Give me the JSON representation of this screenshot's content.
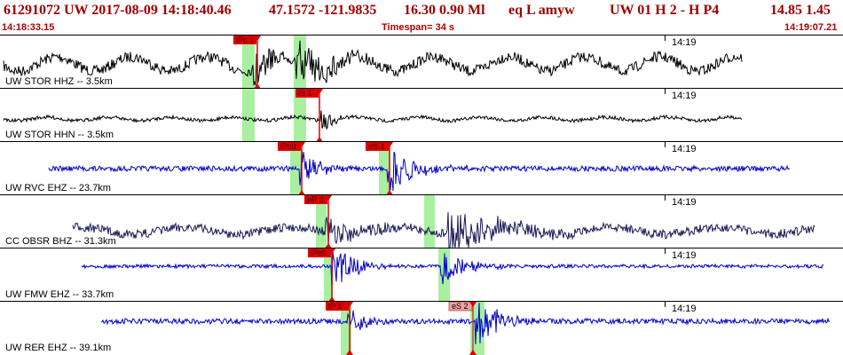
{
  "header": {
    "event_info": "61291072 UW 2017-08-09 14:18:40.46",
    "coords": "47.1572 -121.9835",
    "mag": "16.30  0.90 Ml",
    "etype": "eq  L amyw",
    "solution": "UW 01  H  2  -  H P4",
    "extra": "14.85  1.45"
  },
  "subheader": {
    "start_time": "14:18:33.15",
    "timespan": "Timespan=  34 s",
    "end_time": "14:19:07.21"
  },
  "panels": [
    {
      "label": "UW STOR HHZ -- 3.5km",
      "time_mark": "14:19",
      "color": "#000000",
      "picks": [
        {
          "label": "iPc 1",
          "x": 263,
          "style": "red"
        }
      ]
    },
    {
      "label": "UW STOR HHN -- 3.5km",
      "time_mark": "14:19",
      "color": "#000000",
      "picks": [
        {
          "label": "iS 1",
          "x": 333,
          "style": "red"
        }
      ]
    },
    {
      "label": "UW RVC EHZ -- 23.7km",
      "time_mark": "14:19",
      "color": "#0000cc",
      "picks": [
        {
          "label": "iPc0",
          "x": 313,
          "style": "red"
        },
        {
          "label": "eS 1",
          "x": 412,
          "style": "red"
        }
      ]
    },
    {
      "label": "CC OBSR BHZ -- 31.3km",
      "time_mark": "14:19",
      "color": "#1a1a55",
      "picks": [
        {
          "label": "eP 2",
          "x": 343,
          "style": "red"
        }
      ]
    },
    {
      "label": "UW FMW EHZ -- 33.7km",
      "time_mark": "14:19",
      "color": "#0000cc",
      "picks": [
        {
          "label": "iPc0",
          "x": 347,
          "style": "red"
        }
      ]
    },
    {
      "label": "UW RER EHZ -- 39.1km",
      "time_mark": "14:19",
      "color": "#0000cc",
      "picks": [
        {
          "label": "iP 1",
          "x": 367,
          "style": "red"
        },
        {
          "label": "eS 2",
          "x": 506,
          "style": "pink"
        }
      ]
    }
  ],
  "colors": {
    "header_text": "#a00000",
    "pick_red": "#dd0000",
    "pick_pink": "#f4a0a0",
    "phase_window": "#a8f0a0"
  }
}
